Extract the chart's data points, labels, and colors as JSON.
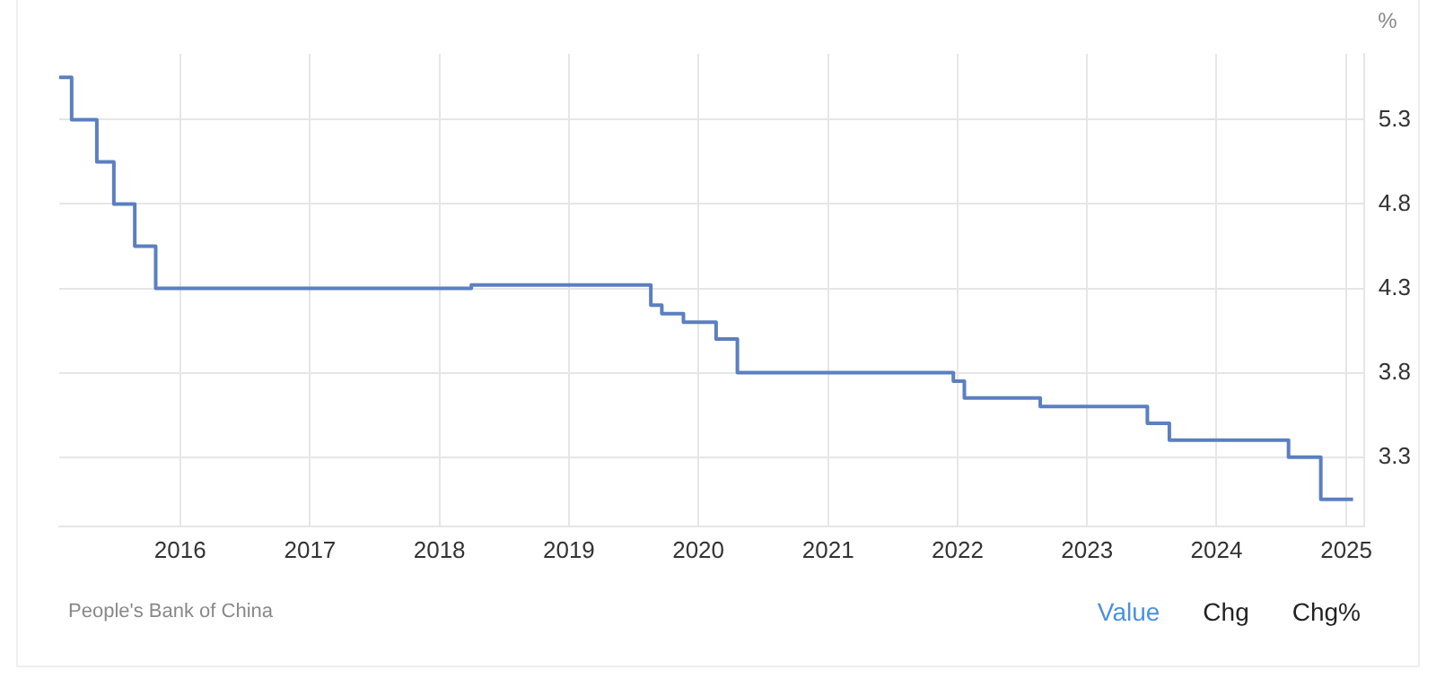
{
  "chart_data": {
    "type": "step",
    "ylabel": "%",
    "x": [
      "2015-01-25",
      "2015-03-01",
      "2015-05-11",
      "2015-06-28",
      "2015-08-26",
      "2015-10-24",
      "2018-04-01",
      "2019-08-20",
      "2019-09-20",
      "2019-11-20",
      "2020-02-20",
      "2020-04-20",
      "2021-12-20",
      "2022-01-20",
      "2022-08-22",
      "2023-06-20",
      "2023-08-21",
      "2024-07-22",
      "2024-10-21",
      "2025-01-20"
    ],
    "series": [
      {
        "color": "#5b7fc0",
        "values": [
          5.6,
          5.35,
          5.1,
          4.85,
          4.6,
          4.35,
          4.37,
          4.25,
          4.2,
          4.15,
          4.05,
          3.85,
          3.8,
          3.7,
          3.65,
          3.55,
          3.45,
          3.35,
          3.1,
          3.1
        ]
      }
    ],
    "xlim": [
      "2015-01-25",
      "2025-02-20"
    ],
    "xticks": [
      "2016",
      "2017",
      "2018",
      "2019",
      "2020",
      "2021",
      "2022",
      "2023",
      "2024",
      "2025"
    ],
    "ylim": [
      2.94,
      5.74
    ],
    "yticks": [
      {
        "value": 3.35,
        "label": "3.3"
      },
      {
        "value": 3.85,
        "label": "3.8"
      },
      {
        "value": 4.35,
        "label": "4.3"
      },
      {
        "value": 4.85,
        "label": "4.8"
      },
      {
        "value": 5.35,
        "label": "5.3"
      }
    ],
    "grid": true,
    "legend": false,
    "annotations": [
      "People's Bank of China",
      "Value",
      "Chg",
      "Chg%"
    ]
  }
}
